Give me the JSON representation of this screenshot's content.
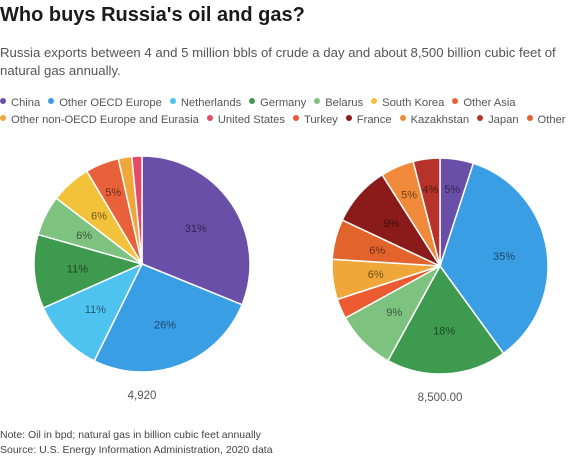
{
  "header": {
    "title": "Who buys Russia's oil and gas?",
    "subtitle": "Russia exports between 4 and 5 million bbls of crude a day and about 8,500 billion cubic feet of natural gas annually."
  },
  "legend": [
    {
      "name": "China",
      "color": "#6a4fa8"
    },
    {
      "name": "Other OECD Europe",
      "color": "#3a9ee4"
    },
    {
      "name": "Netherlands",
      "color": "#4fc3f0"
    },
    {
      "name": "Germany",
      "color": "#3e9a4f"
    },
    {
      "name": "Belarus",
      "color": "#7dc27f"
    },
    {
      "name": "South Korea",
      "color": "#f2c23b"
    },
    {
      "name": "Other Asia",
      "color": "#e8613a"
    },
    {
      "name": "Other non-OECD Europe and Eurasia",
      "color": "#f0a73a"
    },
    {
      "name": "United States",
      "color": "#e8486a"
    },
    {
      "name": "Turkey",
      "color": "#ec5a32"
    },
    {
      "name": "France",
      "color": "#8b1a1a"
    },
    {
      "name": "Kazakhstan",
      "color": "#f08a3a"
    },
    {
      "name": "Japan",
      "color": "#b7322a"
    },
    {
      "name": "Other",
      "color": "#e3632d"
    }
  ],
  "chart_data": [
    {
      "type": "pie",
      "total_label": "4,920",
      "slices": [
        {
          "name": "China",
          "value": 31,
          "label": "31%",
          "color": "#6a4fa8"
        },
        {
          "name": "Other OECD Europe",
          "value": 26,
          "label": "26%",
          "color": "#3a9ee4"
        },
        {
          "name": "Netherlands",
          "value": 11,
          "label": "11%",
          "color": "#4fc3f0"
        },
        {
          "name": "Germany",
          "value": 11,
          "label": "11%",
          "color": "#3e9a4f"
        },
        {
          "name": "Belarus",
          "value": 6,
          "label": "6%",
          "color": "#7dc27f"
        },
        {
          "name": "South Korea",
          "value": 6,
          "label": "6%",
          "color": "#f2c23b"
        },
        {
          "name": "Other Asia",
          "value": 5,
          "label": "5%",
          "color": "#e8613a"
        },
        {
          "name": "Other non-OECD Europe and Eurasia",
          "value": 2,
          "label": "",
          "color": "#f0a73a"
        },
        {
          "name": "United States",
          "value": 1.5,
          "label": "",
          "color": "#e8486a"
        }
      ]
    },
    {
      "type": "pie",
      "total_label": "8,500.00",
      "slices": [
        {
          "name": "China",
          "value": 5,
          "label": "5%",
          "color": "#6a4fa8"
        },
        {
          "name": "Other OECD Europe",
          "value": 35,
          "label": "35%",
          "color": "#3a9ee4"
        },
        {
          "name": "Germany",
          "value": 18,
          "label": "18%",
          "color": "#3e9a4f"
        },
        {
          "name": "Belarus",
          "value": 9,
          "label": "9%",
          "color": "#7dc27f"
        },
        {
          "name": "Turkey",
          "value": 3,
          "label": "",
          "color": "#ec5a32"
        },
        {
          "name": "Other non-OECD Europe and Eurasia",
          "value": 6,
          "label": "6%",
          "color": "#f0a73a"
        },
        {
          "name": "Other",
          "value": 6,
          "label": "6%",
          "color": "#e3632d"
        },
        {
          "name": "France",
          "value": 9,
          "label": "9%",
          "color": "#8b1a1a"
        },
        {
          "name": "Kazakhstan",
          "value": 5,
          "label": "5%",
          "color": "#f08a3a"
        },
        {
          "name": "Japan",
          "value": 4,
          "label": "4%",
          "color": "#b7322a"
        }
      ]
    }
  ],
  "footer": {
    "note": "Note: Oil in bpd; natural gas in billion cubic feet annually",
    "source": "Source: U.S. Energy Information Administration, 2020 data"
  }
}
